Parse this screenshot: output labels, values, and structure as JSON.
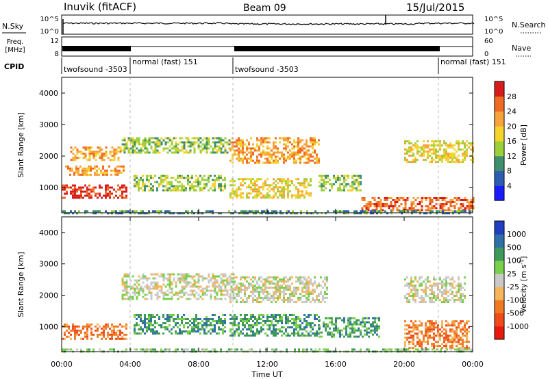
{
  "header": {
    "station": "Inuvik (fitACF)",
    "beam": "Beam 09",
    "date": "15/Jul/2015"
  },
  "chart_data": [
    {
      "type": "line",
      "panel": "noise",
      "left_label": "N.Sky",
      "right_label": "N.Search",
      "yticks_left": [
        "10^5",
        "10^0"
      ],
      "yticks_right": [
        "10^5",
        "10^0"
      ]
    },
    {
      "type": "line",
      "panel": "frequency",
      "left_label_lines": [
        "Freq.",
        "[MHz]"
      ],
      "yticks_left": [
        "12",
        "8"
      ],
      "right_label": "Nave",
      "yticks_right": [
        "60",
        "0"
      ]
    },
    {
      "type": "table",
      "panel": "cpid",
      "label": "CPID",
      "segments": [
        {
          "start_hour": 0,
          "end_hour": 4,
          "name": "twofsound -3503"
        },
        {
          "start_hour": 4,
          "end_hour": 10,
          "name": "normal (fast) 151"
        },
        {
          "start_hour": 10,
          "end_hour": 22,
          "name": "twofsound -3503"
        },
        {
          "start_hour": 22,
          "end_hour": 24,
          "name": "normal (fast) 151"
        }
      ]
    },
    {
      "type": "heatmap",
      "panel": "power",
      "ylabel": "Slant Range [km]",
      "ylim": [
        200,
        4500
      ],
      "yticks": [
        1000,
        2000,
        3000,
        4000
      ],
      "xlim": [
        0,
        24
      ],
      "colorbar": {
        "label": "Power [dB]",
        "ticks": [
          "4",
          "8",
          "12",
          "16",
          "20",
          "24",
          "28"
        ],
        "colors": [
          "#1a1aff",
          "#2d5db3",
          "#3f8f6f",
          "#9ccf3a",
          "#f4d32a",
          "#f7a23a",
          "#f06a24",
          "#d81b1b"
        ]
      },
      "regions": [
        {
          "t0": 0.0,
          "t1": 3.8,
          "r0": 700,
          "r1": 1100,
          "level": 7
        },
        {
          "t0": 0.2,
          "t1": 3.6,
          "r0": 1400,
          "r1": 1700,
          "level": 5
        },
        {
          "t0": 0.5,
          "t1": 3.5,
          "r0": 1900,
          "r1": 2300,
          "level": 5
        },
        {
          "t0": 3.5,
          "t1": 9.8,
          "r0": 2100,
          "r1": 2600,
          "level": 3
        },
        {
          "t0": 4.2,
          "t1": 9.5,
          "r0": 900,
          "r1": 1400,
          "level": 3
        },
        {
          "t0": 9.8,
          "t1": 15.0,
          "r0": 1800,
          "r1": 2600,
          "level": 5
        },
        {
          "t0": 9.8,
          "t1": 14.5,
          "r0": 700,
          "r1": 1300,
          "level": 4
        },
        {
          "t0": 15.0,
          "t1": 17.5,
          "r0": 900,
          "r1": 1400,
          "level": 3
        },
        {
          "t0": 17.5,
          "t1": 24.0,
          "r0": 250,
          "r1": 700,
          "level": 6
        },
        {
          "t0": 20.0,
          "t1": 24.0,
          "r0": 1800,
          "r1": 2500,
          "level": 4
        },
        {
          "t0": 0.0,
          "t1": 24.0,
          "r0": 200,
          "r1": 280,
          "level": 2
        }
      ]
    },
    {
      "type": "heatmap",
      "panel": "velocity",
      "ylabel": "Slant Range [km]",
      "ylim": [
        200,
        4500
      ],
      "yticks": [
        1000,
        2000,
        3000,
        4000
      ],
      "xlim": [
        0,
        24
      ],
      "xticks": [
        "00:00",
        "04:00",
        "08:00",
        "12:00",
        "16:00",
        "20:00",
        "00:00"
      ],
      "xlabel": "Time UT",
      "colorbar": {
        "label": "Velocity [m s^-1]",
        "ticks": [
          "-1000",
          "-500",
          "-100",
          "-25",
          "25",
          "100",
          "500",
          "1000"
        ],
        "colors": [
          "#e8180f",
          "#f04a1a",
          "#f07a22",
          "#f5b55a",
          "#c9c9c9",
          "#7ad04a",
          "#3f9a5a",
          "#2f70a8",
          "#1f3fc0"
        ]
      },
      "regions": [
        {
          "t0": 0.0,
          "t1": 3.8,
          "r0": 600,
          "r1": 1100,
          "level": 2
        },
        {
          "t0": 3.5,
          "t1": 10.0,
          "r0": 1900,
          "r1": 2700,
          "level": 4
        },
        {
          "t0": 4.2,
          "t1": 9.5,
          "r0": 800,
          "r1": 1400,
          "level": 6
        },
        {
          "t0": 9.8,
          "t1": 15.5,
          "r0": 1800,
          "r1": 2600,
          "level": 4
        },
        {
          "t0": 9.8,
          "t1": 15.0,
          "r0": 700,
          "r1": 1400,
          "level": 6
        },
        {
          "t0": 15.0,
          "t1": 18.5,
          "r0": 700,
          "r1": 1300,
          "level": 6
        },
        {
          "t0": 20.0,
          "t1": 23.8,
          "r0": 300,
          "r1": 1200,
          "level": 2
        },
        {
          "t0": 20.0,
          "t1": 23.5,
          "r0": 1800,
          "r1": 2600,
          "level": 4
        },
        {
          "t0": 0.0,
          "t1": 24.0,
          "r0": 200,
          "r1": 300,
          "level": 5
        }
      ]
    }
  ]
}
